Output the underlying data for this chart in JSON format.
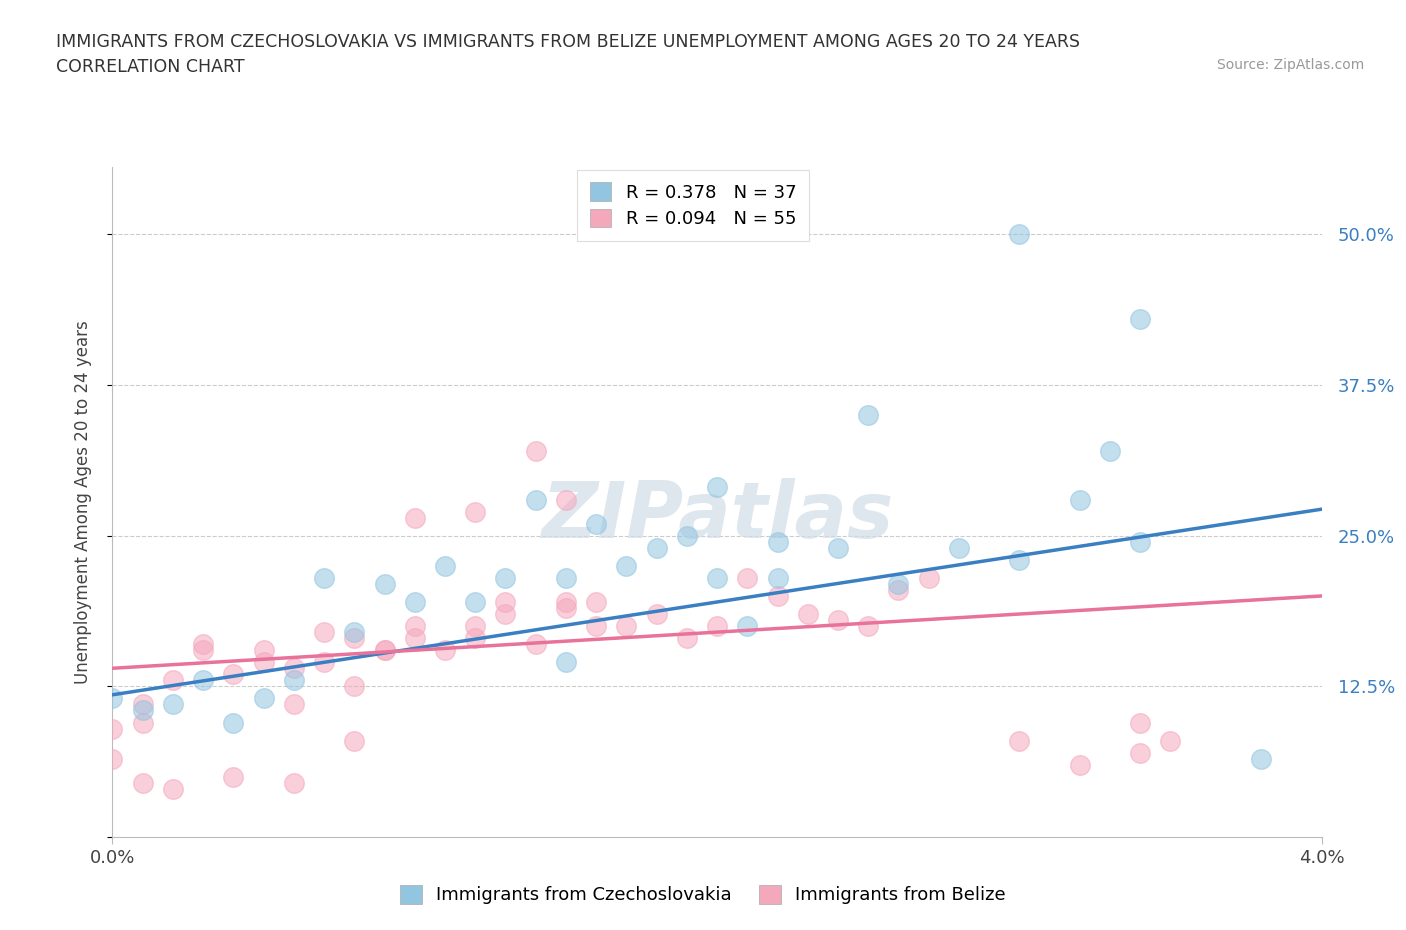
{
  "title_line1": "IMMIGRANTS FROM CZECHOSLOVAKIA VS IMMIGRANTS FROM BELIZE UNEMPLOYMENT AMONG AGES 20 TO 24 YEARS",
  "title_line2": "CORRELATION CHART",
  "source": "Source: ZipAtlas.com",
  "ylabel": "Unemployment Among Ages 20 to 24 years",
  "xlim": [
    0.0,
    0.04
  ],
  "ylim": [
    0.0,
    0.5556
  ],
  "yticks": [
    0.0,
    0.125,
    0.25,
    0.375,
    0.5
  ],
  "ytick_labels": [
    "",
    "12.5%",
    "25.0%",
    "37.5%",
    "50.0%"
  ],
  "xticks": [
    0.0,
    0.04
  ],
  "xtick_labels": [
    "0.0%",
    "4.0%"
  ],
  "legend_entries": [
    {
      "label": "R = 0.378   N = 37",
      "color": "#92C5E0"
    },
    {
      "label": "R = 0.094   N = 55",
      "color": "#F4A8BC"
    }
  ],
  "legend_label_czecho": "Immigrants from Czechoslovakia",
  "legend_label_belize": "Immigrants from Belize",
  "color_czecho": "#92C5E0",
  "color_belize": "#F4A8BC",
  "color_line_czecho": "#3A7FC1",
  "color_line_belize": "#E8729A",
  "watermark": "ZIPatlas",
  "czecho_R": 0.378,
  "belize_R": 0.094,
  "czecho_line_y0": 0.118,
  "czecho_line_y1": 0.272,
  "belize_line_y0": 0.14,
  "belize_line_y1": 0.2,
  "czecho_scatter_x": [
    0.0,
    0.001,
    0.002,
    0.003,
    0.004,
    0.005,
    0.006,
    0.007,
    0.008,
    0.009,
    0.01,
    0.011,
    0.012,
    0.013,
    0.014,
    0.015,
    0.016,
    0.017,
    0.018,
    0.019,
    0.02,
    0.021,
    0.022,
    0.024,
    0.025,
    0.026,
    0.028,
    0.03,
    0.032,
    0.033,
    0.034,
    0.038,
    0.015,
    0.02,
    0.022,
    0.03,
    0.034
  ],
  "czecho_scatter_y": [
    0.115,
    0.105,
    0.11,
    0.13,
    0.095,
    0.115,
    0.13,
    0.215,
    0.17,
    0.21,
    0.195,
    0.225,
    0.195,
    0.215,
    0.28,
    0.215,
    0.26,
    0.225,
    0.24,
    0.25,
    0.215,
    0.175,
    0.245,
    0.24,
    0.35,
    0.21,
    0.24,
    0.23,
    0.28,
    0.32,
    0.43,
    0.065,
    0.145,
    0.29,
    0.215,
    0.5,
    0.245
  ],
  "belize_scatter_x": [
    0.0,
    0.001,
    0.001,
    0.002,
    0.003,
    0.003,
    0.004,
    0.005,
    0.005,
    0.006,
    0.006,
    0.007,
    0.007,
    0.008,
    0.008,
    0.009,
    0.009,
    0.01,
    0.01,
    0.011,
    0.012,
    0.012,
    0.013,
    0.013,
    0.014,
    0.015,
    0.015,
    0.016,
    0.016,
    0.017,
    0.018,
    0.019,
    0.02,
    0.021,
    0.022,
    0.023,
    0.024,
    0.025,
    0.026,
    0.027,
    0.03,
    0.032,
    0.034,
    0.034,
    0.035,
    0.015,
    0.014,
    0.012,
    0.01,
    0.008,
    0.006,
    0.004,
    0.002,
    0.001,
    0.0
  ],
  "belize_scatter_y": [
    0.09,
    0.095,
    0.11,
    0.13,
    0.155,
    0.16,
    0.135,
    0.145,
    0.155,
    0.11,
    0.14,
    0.145,
    0.17,
    0.125,
    0.165,
    0.155,
    0.155,
    0.165,
    0.175,
    0.155,
    0.165,
    0.175,
    0.185,
    0.195,
    0.16,
    0.19,
    0.195,
    0.175,
    0.195,
    0.175,
    0.185,
    0.165,
    0.175,
    0.215,
    0.2,
    0.185,
    0.18,
    0.175,
    0.205,
    0.215,
    0.08,
    0.06,
    0.07,
    0.095,
    0.08,
    0.28,
    0.32,
    0.27,
    0.265,
    0.08,
    0.045,
    0.05,
    0.04,
    0.045,
    0.065
  ]
}
